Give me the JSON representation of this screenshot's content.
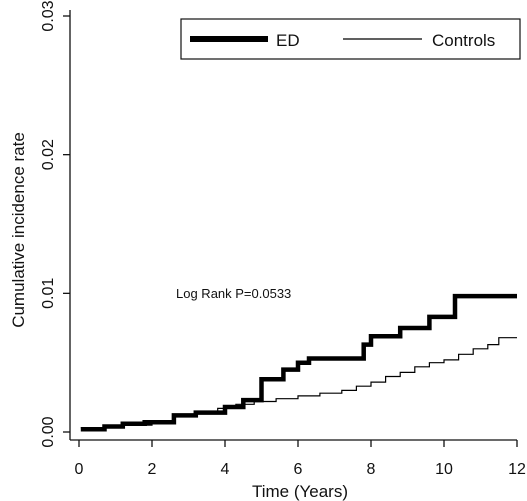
{
  "chart_data": {
    "type": "line",
    "xlabel": "Time (Years)",
    "ylabel": "Cumulative incidence rate",
    "xlim": [
      0,
      12
    ],
    "ylim": [
      0,
      0.03
    ],
    "xticks": [
      0,
      2,
      4,
      6,
      8,
      10,
      12
    ],
    "xtick_labels": [
      "0",
      "2",
      "4",
      "6",
      "8",
      "10",
      "12"
    ],
    "yticks": [
      0,
      0.01,
      0.02,
      0.03
    ],
    "ytick_labels": [
      "0.00",
      "0.01",
      "0.02",
      "0.03"
    ],
    "grid": false,
    "legend_position": "top-right",
    "annotation": "Log Rank P=0.0533",
    "series": [
      {
        "name": "ED",
        "style": "thick",
        "color": "#000000",
        "x": [
          0.05,
          0.7,
          0.7,
          1.2,
          1.2,
          1.8,
          1.8,
          2.6,
          2.6,
          3.2,
          3.2,
          4.0,
          4.0,
          4.5,
          4.5,
          5.0,
          5.0,
          5.6,
          5.6,
          6.0,
          6.0,
          6.3,
          6.3,
          7.8,
          7.8,
          8.0,
          8.0,
          8.8,
          8.8,
          9.6,
          9.6,
          10.3,
          10.3,
          12.0
        ],
        "y": [
          0.0002,
          0.0002,
          0.0004,
          0.0004,
          0.0006,
          0.0006,
          0.0007,
          0.0007,
          0.0012,
          0.0012,
          0.0014,
          0.0014,
          0.0018,
          0.0018,
          0.0023,
          0.0023,
          0.0038,
          0.0038,
          0.0045,
          0.0045,
          0.005,
          0.005,
          0.0053,
          0.0053,
          0.0063,
          0.0063,
          0.0069,
          0.0069,
          0.0075,
          0.0075,
          0.0083,
          0.0083,
          0.0098,
          0.0098
        ]
      },
      {
        "name": "Controls",
        "style": "thin",
        "color": "#000000",
        "x": [
          0.05,
          1.0,
          1.0,
          2.0,
          2.0,
          2.6,
          2.6,
          3.2,
          3.2,
          3.8,
          3.8,
          4.3,
          4.3,
          4.8,
          4.8,
          5.4,
          5.4,
          6.0,
          6.0,
          6.6,
          6.6,
          7.2,
          7.2,
          7.6,
          7.6,
          8.0,
          8.0,
          8.4,
          8.4,
          8.8,
          8.8,
          9.2,
          9.2,
          9.6,
          9.6,
          10.0,
          10.0,
          10.4,
          10.4,
          10.8,
          10.8,
          11.2,
          11.2,
          11.5,
          11.5,
          12.0
        ],
        "y": [
          0.0003,
          0.0003,
          0.0005,
          0.0005,
          0.0008,
          0.0008,
          0.0012,
          0.0012,
          0.0014,
          0.0014,
          0.0017,
          0.0017,
          0.002,
          0.002,
          0.0022,
          0.0022,
          0.0024,
          0.0024,
          0.0026,
          0.0026,
          0.0028,
          0.0028,
          0.003,
          0.003,
          0.0033,
          0.0033,
          0.0036,
          0.0036,
          0.004,
          0.004,
          0.0043,
          0.0043,
          0.0047,
          0.0047,
          0.005,
          0.005,
          0.0052,
          0.0052,
          0.0056,
          0.0056,
          0.006,
          0.006,
          0.0063,
          0.0063,
          0.0068,
          0.0068
        ]
      }
    ]
  }
}
